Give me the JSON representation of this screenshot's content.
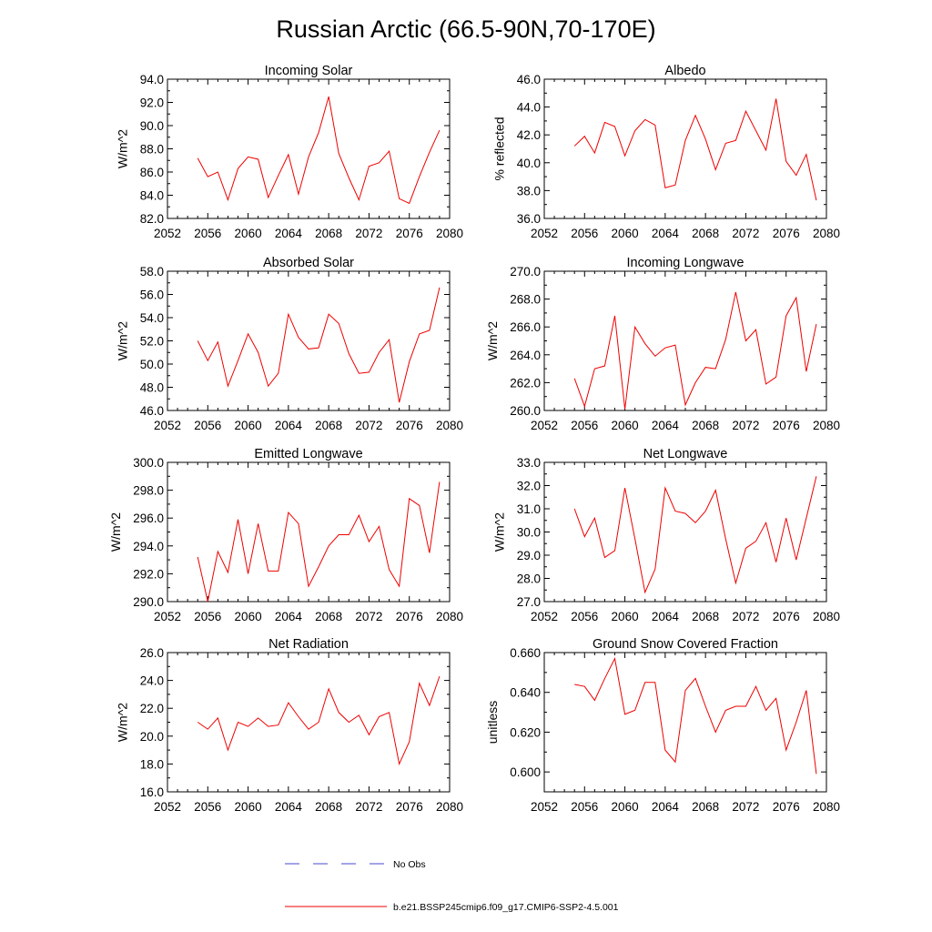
{
  "figure": {
    "title": "Russian Arctic (66.5-90N,70-170E)",
    "line_color": "#ee0000",
    "obs_color": "#4a4ad0"
  },
  "legend": [
    {
      "label": "No Obs",
      "style": "dashed",
      "color": "#4a4ad0"
    },
    {
      "label": "b.e21.BSSP245cmip6.f09_g17.CMIP6-SSP2-4.5.001",
      "style": "solid",
      "color": "#ee0000"
    }
  ],
  "chart_data": [
    {
      "type": "line",
      "title": "Incoming Solar",
      "xlabel": "",
      "ylabel": "W/m^2",
      "xlim": [
        2052,
        2080
      ],
      "ylim": [
        82,
        94
      ],
      "x_ticks": [
        2052,
        2056,
        2060,
        2064,
        2068,
        2072,
        2076,
        2080
      ],
      "y_ticks": [
        "82.0",
        "84.0",
        "86.0",
        "88.0",
        "90.0",
        "92.0",
        "94.0"
      ],
      "grid": false,
      "x": [
        2055,
        2056,
        2057,
        2058,
        2059,
        2060,
        2061,
        2062,
        2063,
        2064,
        2065,
        2066,
        2067,
        2068,
        2069,
        2070,
        2071,
        2072,
        2073,
        2074,
        2075,
        2076,
        2077,
        2078,
        2079
      ],
      "series": [
        {
          "values": [
            87.2,
            85.6,
            86.0,
            83.6,
            86.3,
            87.3,
            87.1,
            83.8,
            85.7,
            87.5,
            84.1,
            87.3,
            89.4,
            92.5,
            87.6,
            85.5,
            83.6,
            86.5,
            86.8,
            87.8,
            83.7,
            83.3,
            85.6,
            87.7,
            89.6
          ]
        }
      ]
    },
    {
      "type": "line",
      "title": "Albedo",
      "xlabel": "",
      "ylabel": "% reflected",
      "xlim": [
        2052,
        2080
      ],
      "ylim": [
        36,
        46
      ],
      "x_ticks": [
        2052,
        2056,
        2060,
        2064,
        2068,
        2072,
        2076,
        2080
      ],
      "y_ticks": [
        "36.0",
        "38.0",
        "40.0",
        "42.0",
        "44.0",
        "46.0"
      ],
      "grid": false,
      "x": [
        2055,
        2056,
        2057,
        2058,
        2059,
        2060,
        2061,
        2062,
        2063,
        2064,
        2065,
        2066,
        2067,
        2068,
        2069,
        2070,
        2071,
        2072,
        2073,
        2074,
        2075,
        2076,
        2077,
        2078,
        2079
      ],
      "series": [
        {
          "values": [
            41.2,
            41.9,
            40.7,
            42.9,
            42.6,
            40.5,
            42.3,
            43.1,
            42.7,
            38.2,
            38.4,
            41.6,
            43.4,
            41.7,
            39.5,
            41.4,
            41.6,
            43.7,
            42.3,
            40.9,
            44.6,
            40.1,
            39.1,
            40.6,
            37.3
          ]
        }
      ]
    },
    {
      "type": "line",
      "title": "Absorbed Solar",
      "xlabel": "",
      "ylabel": "W/m^2",
      "xlim": [
        2052,
        2080
      ],
      "ylim": [
        46,
        58
      ],
      "x_ticks": [
        2052,
        2056,
        2060,
        2064,
        2068,
        2072,
        2076,
        2080
      ],
      "y_ticks": [
        "46.0",
        "48.0",
        "50.0",
        "52.0",
        "54.0",
        "56.0",
        "58.0"
      ],
      "grid": false,
      "x": [
        2055,
        2056,
        2057,
        2058,
        2059,
        2060,
        2061,
        2062,
        2063,
        2064,
        2065,
        2066,
        2067,
        2068,
        2069,
        2070,
        2071,
        2072,
        2073,
        2074,
        2075,
        2076,
        2077,
        2078,
        2079
      ],
      "series": [
        {
          "values": [
            52.0,
            50.3,
            51.9,
            48.1,
            50.3,
            52.6,
            51.0,
            48.1,
            49.2,
            54.3,
            52.3,
            51.3,
            51.4,
            54.3,
            53.5,
            50.9,
            49.2,
            49.3,
            51.0,
            52.1,
            46.7,
            50.2,
            52.6,
            52.9,
            56.6
          ]
        }
      ]
    },
    {
      "type": "line",
      "title": "Incoming Longwave",
      "xlabel": "",
      "ylabel": "W/m^2",
      "xlim": [
        2052,
        2080
      ],
      "ylim": [
        260,
        270
      ],
      "x_ticks": [
        2052,
        2056,
        2060,
        2064,
        2068,
        2072,
        2076,
        2080
      ],
      "y_ticks": [
        "260.0",
        "262.0",
        "264.0",
        "266.0",
        "268.0",
        "270.0"
      ],
      "grid": false,
      "x": [
        2055,
        2056,
        2057,
        2058,
        2059,
        2060,
        2061,
        2062,
        2063,
        2064,
        2065,
        2066,
        2067,
        2068,
        2069,
        2070,
        2071,
        2072,
        2073,
        2074,
        2075,
        2076,
        2077,
        2078,
        2079
      ],
      "series": [
        {
          "values": [
            262.3,
            260.3,
            263.0,
            263.2,
            266.8,
            260.1,
            266.0,
            264.8,
            263.9,
            264.5,
            264.7,
            260.4,
            262.0,
            263.1,
            263.0,
            265.1,
            268.5,
            265.0,
            265.8,
            261.9,
            262.4,
            266.8,
            268.1,
            262.8,
            266.2
          ]
        }
      ]
    },
    {
      "type": "line",
      "title": "Emitted Longwave",
      "xlabel": "",
      "ylabel": "W/m^2",
      "xlim": [
        2052,
        2080
      ],
      "ylim": [
        290,
        300
      ],
      "x_ticks": [
        2052,
        2056,
        2060,
        2064,
        2068,
        2072,
        2076,
        2080
      ],
      "y_ticks": [
        "290.0",
        "292.0",
        "294.0",
        "296.0",
        "298.0",
        "300.0"
      ],
      "grid": false,
      "x": [
        2055,
        2056,
        2057,
        2058,
        2059,
        2060,
        2061,
        2062,
        2063,
        2064,
        2065,
        2066,
        2067,
        2068,
        2069,
        2070,
        2071,
        2072,
        2073,
        2074,
        2075,
        2076,
        2077,
        2078,
        2079
      ],
      "series": [
        {
          "values": [
            293.2,
            290.0,
            293.6,
            292.1,
            295.9,
            292.0,
            295.6,
            292.2,
            292.2,
            296.4,
            295.6,
            291.1,
            292.5,
            294.0,
            294.8,
            294.8,
            296.2,
            294.3,
            295.4,
            292.3,
            291.1,
            297.4,
            296.9,
            293.5,
            298.6
          ]
        }
      ]
    },
    {
      "type": "line",
      "title": "Net Longwave",
      "xlabel": "",
      "ylabel": "W/m^2",
      "xlim": [
        2052,
        2080
      ],
      "ylim": [
        27,
        33
      ],
      "x_ticks": [
        2052,
        2056,
        2060,
        2064,
        2068,
        2072,
        2076,
        2080
      ],
      "y_ticks": [
        "27.0",
        "28.0",
        "29.0",
        "30.0",
        "31.0",
        "32.0",
        "33.0"
      ],
      "grid": false,
      "x": [
        2055,
        2056,
        2057,
        2058,
        2059,
        2060,
        2061,
        2062,
        2063,
        2064,
        2065,
        2066,
        2067,
        2068,
        2069,
        2070,
        2071,
        2072,
        2073,
        2074,
        2075,
        2076,
        2077,
        2078,
        2079
      ],
      "series": [
        {
          "values": [
            31.0,
            29.8,
            30.6,
            28.9,
            29.2,
            31.9,
            29.7,
            27.4,
            28.4,
            31.9,
            30.9,
            30.8,
            30.4,
            30.9,
            31.8,
            29.7,
            27.8,
            29.3,
            29.6,
            30.4,
            28.7,
            30.6,
            28.8,
            30.6,
            32.4
          ]
        }
      ]
    },
    {
      "type": "line",
      "title": "Net Radiation",
      "xlabel": "",
      "ylabel": "W/m^2",
      "xlim": [
        2052,
        2080
      ],
      "ylim": [
        16,
        26
      ],
      "x_ticks": [
        2052,
        2056,
        2060,
        2064,
        2068,
        2072,
        2076,
        2080
      ],
      "y_ticks": [
        "16.0",
        "18.0",
        "20.0",
        "22.0",
        "24.0",
        "26.0"
      ],
      "grid": false,
      "x": [
        2055,
        2056,
        2057,
        2058,
        2059,
        2060,
        2061,
        2062,
        2063,
        2064,
        2065,
        2066,
        2067,
        2068,
        2069,
        2070,
        2071,
        2072,
        2073,
        2074,
        2075,
        2076,
        2077,
        2078,
        2079
      ],
      "series": [
        {
          "values": [
            21.0,
            20.5,
            21.3,
            19.0,
            21.0,
            20.7,
            21.3,
            20.7,
            20.8,
            22.4,
            21.4,
            20.5,
            21.0,
            23.4,
            21.7,
            21.0,
            21.5,
            20.1,
            21.4,
            21.7,
            18.0,
            19.6,
            23.8,
            22.2,
            24.3
          ]
        }
      ]
    },
    {
      "type": "line",
      "title": "Ground Snow Covered Fraction",
      "xlabel": "",
      "ylabel": "unitless",
      "xlim": [
        2052,
        2080
      ],
      "ylim": [
        0.59,
        0.66
      ],
      "x_ticks": [
        2052,
        2056,
        2060,
        2064,
        2068,
        2072,
        2076,
        2080
      ],
      "y_ticks": [
        "0.600",
        "0.620",
        "0.640",
        "0.660"
      ],
      "grid": false,
      "x": [
        2055,
        2056,
        2057,
        2058,
        2059,
        2060,
        2061,
        2062,
        2063,
        2064,
        2065,
        2066,
        2067,
        2068,
        2069,
        2070,
        2071,
        2072,
        2073,
        2074,
        2075,
        2076,
        2077,
        2078,
        2079
      ],
      "series": [
        {
          "values": [
            0.644,
            0.643,
            0.636,
            0.647,
            0.657,
            0.629,
            0.631,
            0.645,
            0.645,
            0.611,
            0.605,
            0.641,
            0.647,
            0.633,
            0.62,
            0.631,
            0.633,
            0.633,
            0.643,
            0.631,
            0.637,
            0.611,
            0.625,
            0.641,
            0.599
          ]
        }
      ]
    }
  ]
}
